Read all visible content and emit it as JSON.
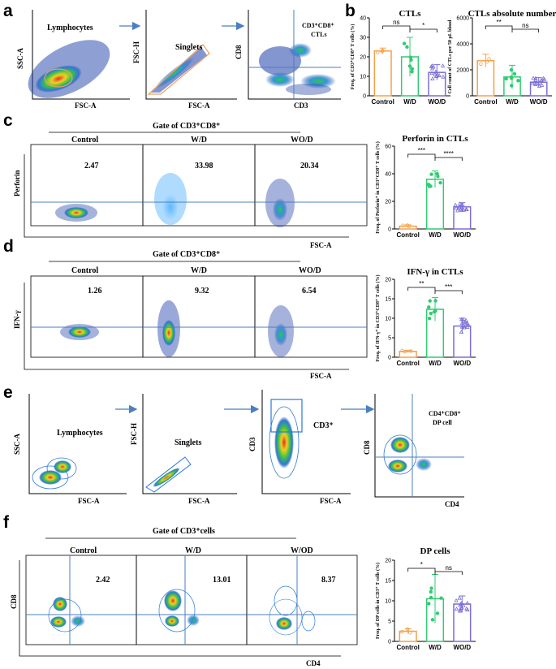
{
  "colors": {
    "control": "#F5A04A",
    "wd": "#2ECC71",
    "wod": "#7B6FD6",
    "gate_line": "#4A7FC1",
    "arrow": "#4A7FC1"
  },
  "panels": {
    "a": {
      "label": "a",
      "plots": [
        {
          "title": "Lymphocytes",
          "xlabel": "FSC-A",
          "ylabel": "SSC-A"
        },
        {
          "title": "Singlets",
          "xlabel": "FSC-A",
          "ylabel": "FSC-H"
        },
        {
          "title_line1": "CD3⁺CD8⁺",
          "title_line2": "CTLs",
          "xlabel": "CD3",
          "ylabel": "CD8"
        }
      ]
    },
    "b": {
      "label": "b"
    },
    "c": {
      "label": "c",
      "gate_title": "Gate of CD3⁺CD8⁺",
      "groups": [
        "Control",
        "W/D",
        "WO/D"
      ],
      "values": [
        "2.47",
        "33.98",
        "20.34"
      ],
      "ylabel": "Perforin",
      "xlabel": "FSC-A"
    },
    "d": {
      "label": "d",
      "gate_title": "Gate of CD3⁺CD8⁺",
      "groups": [
        "Control",
        "W/D",
        "WO/D"
      ],
      "values": [
        "1.26",
        "9.32",
        "6.54"
      ],
      "ylabel": "IFN-γ",
      "xlabel": "FSC-A"
    },
    "e": {
      "label": "e",
      "plots": [
        {
          "title": "Lymphocytes",
          "xlabel": "FSC-A",
          "ylabel": "SSC-A"
        },
        {
          "title": "Singlets",
          "xlabel": "FSC-A",
          "ylabel": "FSC-H"
        },
        {
          "title": "CD3⁺",
          "xlabel": "FSC-A",
          "ylabel": "CD3"
        },
        {
          "title_line1": "CD4⁺CD8⁺",
          "title_line2": "DP cell",
          "xlabel": "CD4",
          "ylabel": "CD8"
        }
      ]
    },
    "f": {
      "label": "f",
      "gate_title": "Gate of CD3⁺cells",
      "groups": [
        "Control",
        "W/D",
        "W/OD"
      ],
      "values": [
        "2.42",
        "13.01",
        "8.37"
      ],
      "ylabel": "CD8",
      "xlabel": "CD4"
    }
  },
  "chart_data": [
    {
      "id": "b-ctls",
      "type": "bar",
      "title": "CTLs",
      "ylabel": "Freq. of CD3⁺CD8⁺ T cells (%)",
      "ylim": [
        0,
        40
      ],
      "yticks": [
        "0",
        "10",
        "20",
        "30",
        "40"
      ],
      "categories": [
        "Control",
        "W/D",
        "WO/D"
      ],
      "values": [
        23,
        20,
        12
      ],
      "errors": [
        1.5,
        10,
        4
      ],
      "significance": [
        {
          "from": 0,
          "to": 1,
          "label": "ns"
        },
        {
          "from": 1,
          "to": 2,
          "label": "*"
        }
      ]
    },
    {
      "id": "b-abs",
      "type": "bar",
      "title": "CTLs absolute number",
      "ylabel": "Cell count of CTLs per 50 μL blood",
      "ylim": [
        0,
        6000
      ],
      "yticks": [
        "0",
        "2000",
        "4000",
        "6000"
      ],
      "categories": [
        "Control",
        "W/D",
        "WO/D"
      ],
      "values": [
        2700,
        1450,
        1050
      ],
      "errors": [
        500,
        900,
        350
      ],
      "significance": [
        {
          "from": 0,
          "to": 1,
          "label": "**"
        },
        {
          "from": 1,
          "to": 2,
          "label": "ns"
        }
      ]
    },
    {
      "id": "c-perforin",
      "type": "bar",
      "title": "Perforin in CTLs",
      "ylabel": "Freq. of Perforin⁺ in CD3⁺CD8⁺ T cells (%)",
      "ylim": [
        0,
        60
      ],
      "yticks": [
        "0",
        "20",
        "40",
        "60"
      ],
      "categories": [
        "Control",
        "W/D",
        "WO/D"
      ],
      "values": [
        2,
        36,
        16
      ],
      "errors": [
        1,
        6,
        3
      ],
      "significance": [
        {
          "from": 0,
          "to": 1,
          "label": "***"
        },
        {
          "from": 1,
          "to": 2,
          "label": "****"
        }
      ]
    },
    {
      "id": "d-ifng",
      "type": "bar",
      "title": "IFN-γ in CTLs",
      "ylabel": "Freq. of IFN-γ⁺ in CD3⁺CD8⁺ T cells (%)",
      "ylim": [
        0,
        20
      ],
      "yticks": [
        "0",
        "5",
        "10",
        "15",
        "20"
      ],
      "categories": [
        "Control",
        "W/D",
        "WO/D"
      ],
      "values": [
        1.5,
        12.3,
        8
      ],
      "errors": [
        0.3,
        3,
        2
      ],
      "significance": [
        {
          "from": 0,
          "to": 1,
          "label": "**"
        },
        {
          "from": 1,
          "to": 2,
          "label": "***"
        }
      ]
    },
    {
      "id": "f-dp",
      "type": "bar",
      "title": "DP cells",
      "ylabel": "Freq. of DP cells in CD3⁺ T cells (%)",
      "ylim": [
        0,
        20
      ],
      "yticks": [
        "0",
        "5",
        "10",
        "15",
        "20"
      ],
      "categories": [
        "Control",
        "W/D",
        "WO/D"
      ],
      "values": [
        2.5,
        10.5,
        9.2
      ],
      "errors": [
        0.6,
        6,
        2
      ],
      "significance": [
        {
          "from": 0,
          "to": 1,
          "label": "*"
        },
        {
          "from": 1,
          "to": 2,
          "label": "ns"
        }
      ]
    }
  ]
}
